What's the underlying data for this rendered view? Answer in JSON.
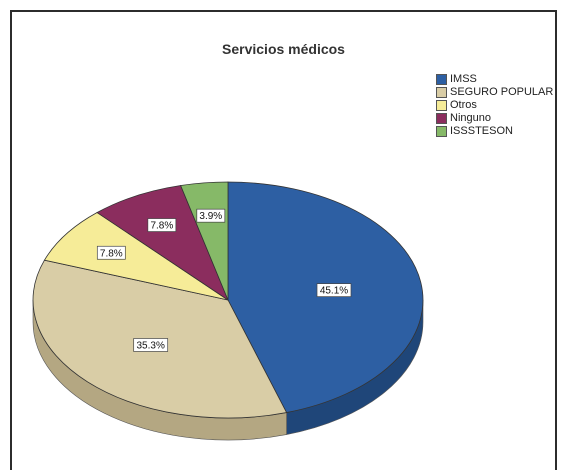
{
  "chart_data": {
    "type": "pie",
    "title": "Servicios médicos",
    "legend_position": "top-right",
    "slices": [
      {
        "name": "IMSS",
        "value": 45.1,
        "label": "45.1%",
        "color": "#2D5FA3",
        "side": "#1F4679"
      },
      {
        "name": "SEGURO POPULAR",
        "value": 35.3,
        "label": "35.3%",
        "color": "#D9CDA6",
        "side": "#B4A782"
      },
      {
        "name": "Otros",
        "value": 7.8,
        "label": "7.8%",
        "color": "#F6EC98",
        "side": "#CFC577"
      },
      {
        "name": "Ninguno",
        "value": 7.8,
        "label": "7.8%",
        "color": "#8B2D5E",
        "side": "#6A2046"
      },
      {
        "name": "ISSSTESON",
        "value": 3.9,
        "label": "3.9%",
        "color": "#86B968",
        "side": "#679350"
      }
    ]
  }
}
